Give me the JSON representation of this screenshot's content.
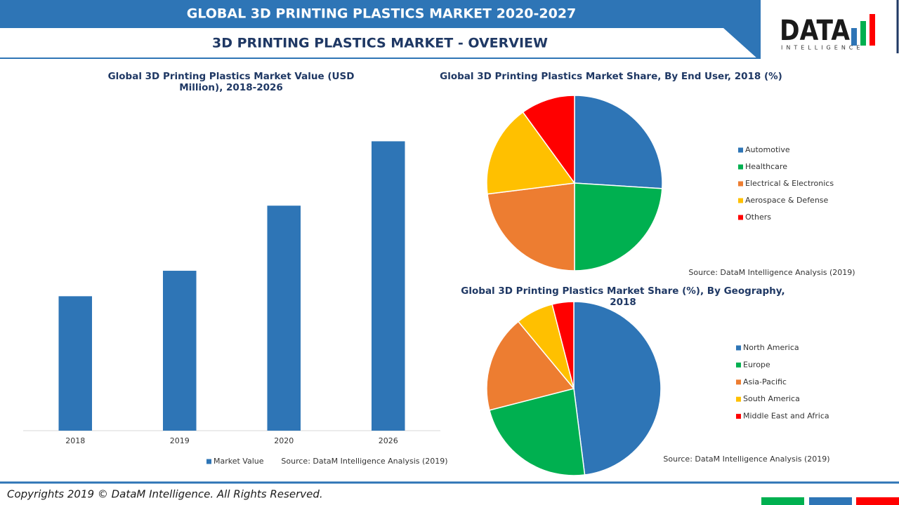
{
  "header": {
    "title": "GLOBAL 3D PRINTING PLASTICS MARKET  2020-2027",
    "subtitle": "3D PRINTING PLASTICS MARKET - OVERVIEW"
  },
  "logo": {
    "name": "DATA",
    "tagline": "INTELLIGENCE"
  },
  "chart_data": [
    {
      "type": "bar",
      "title": "Global 3D Printing Plastics Market Value (USD Million), 2018-2026",
      "categories": [
        "2018",
        "2019",
        "2020",
        "2026"
      ],
      "series": [
        {
          "name": "Market Value",
          "color": "#2e75b6",
          "values": [
            190,
            226,
            318,
            409
          ]
        }
      ],
      "ylim": [
        0,
        460
      ],
      "source": "Source: DataM Intelligence Analysis (2019)"
    },
    {
      "type": "pie",
      "title": "Global 3D Printing Plastics Market Share, By End User, 2018 (%)",
      "categories": [
        "Automotive",
        "Healthcare",
        "Electrical & Electronics",
        "Aerospace & Defense",
        "Others"
      ],
      "values": [
        26,
        24,
        23,
        17,
        10
      ],
      "colors": [
        "#2e75b6",
        "#00b050",
        "#ed7d31",
        "#ffc000",
        "#ff0000"
      ],
      "source": "Source: DataM Intelligence Analysis (2019)"
    },
    {
      "type": "pie",
      "title": "Global 3D Printing Plastics Market Share (%), By Geography, 2018",
      "categories": [
        "North America",
        "Europe",
        "Asia-Pacific",
        "South America",
        "Middle East and Africa"
      ],
      "values": [
        48,
        23,
        18,
        7,
        4
      ],
      "colors": [
        "#2e75b6",
        "#00b050",
        "#ed7d31",
        "#ffc000",
        "#ff0000"
      ],
      "source": "Source: DataM Intelligence Analysis (2019)"
    }
  ],
  "footer": {
    "copyright": "Copyrights 2019 © DataM Intelligence. All Rights Reserved."
  }
}
